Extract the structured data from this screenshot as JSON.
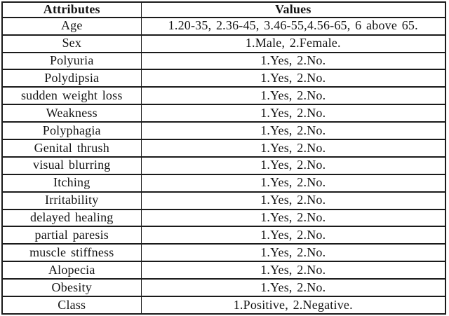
{
  "table": {
    "headers": [
      "Attributes",
      "Values"
    ],
    "rows": [
      {
        "attribute": "Age",
        "values": "1.20-35, 2.36-45, 3.46-55,4.56-65, 6 above 65."
      },
      {
        "attribute": "Sex",
        "values": "1.Male, 2.Female."
      },
      {
        "attribute": "Polyuria",
        "values": "1.Yes, 2.No."
      },
      {
        "attribute": "Polydipsia",
        "values": "1.Yes, 2.No."
      },
      {
        "attribute": "sudden weight loss",
        "values": "1.Yes, 2.No."
      },
      {
        "attribute": "Weakness",
        "values": "1.Yes, 2.No."
      },
      {
        "attribute": "Polyphagia",
        "values": "1.Yes, 2.No."
      },
      {
        "attribute": "Genital thrush",
        "values": "1.Yes, 2.No."
      },
      {
        "attribute": "visual blurring",
        "values": "1.Yes, 2.No."
      },
      {
        "attribute": "Itching",
        "values": "1.Yes, 2.No."
      },
      {
        "attribute": "Irritability",
        "values": "1.Yes, 2.No."
      },
      {
        "attribute": "delayed healing",
        "values": "1.Yes, 2.No."
      },
      {
        "attribute": "partial paresis",
        "values": "1.Yes, 2.No."
      },
      {
        "attribute": "muscle stiffness",
        "values": "1.Yes, 2.No."
      },
      {
        "attribute": "Alopecia",
        "values": "1.Yes, 2.No."
      },
      {
        "attribute": "Obesity",
        "values": "1.Yes, 2.No."
      },
      {
        "attribute": "Class",
        "values": "1.Positive, 2.Negative."
      }
    ],
    "colors": {
      "text": "#141414",
      "border": "#1a1a1a",
      "background": "#ffffff"
    }
  }
}
